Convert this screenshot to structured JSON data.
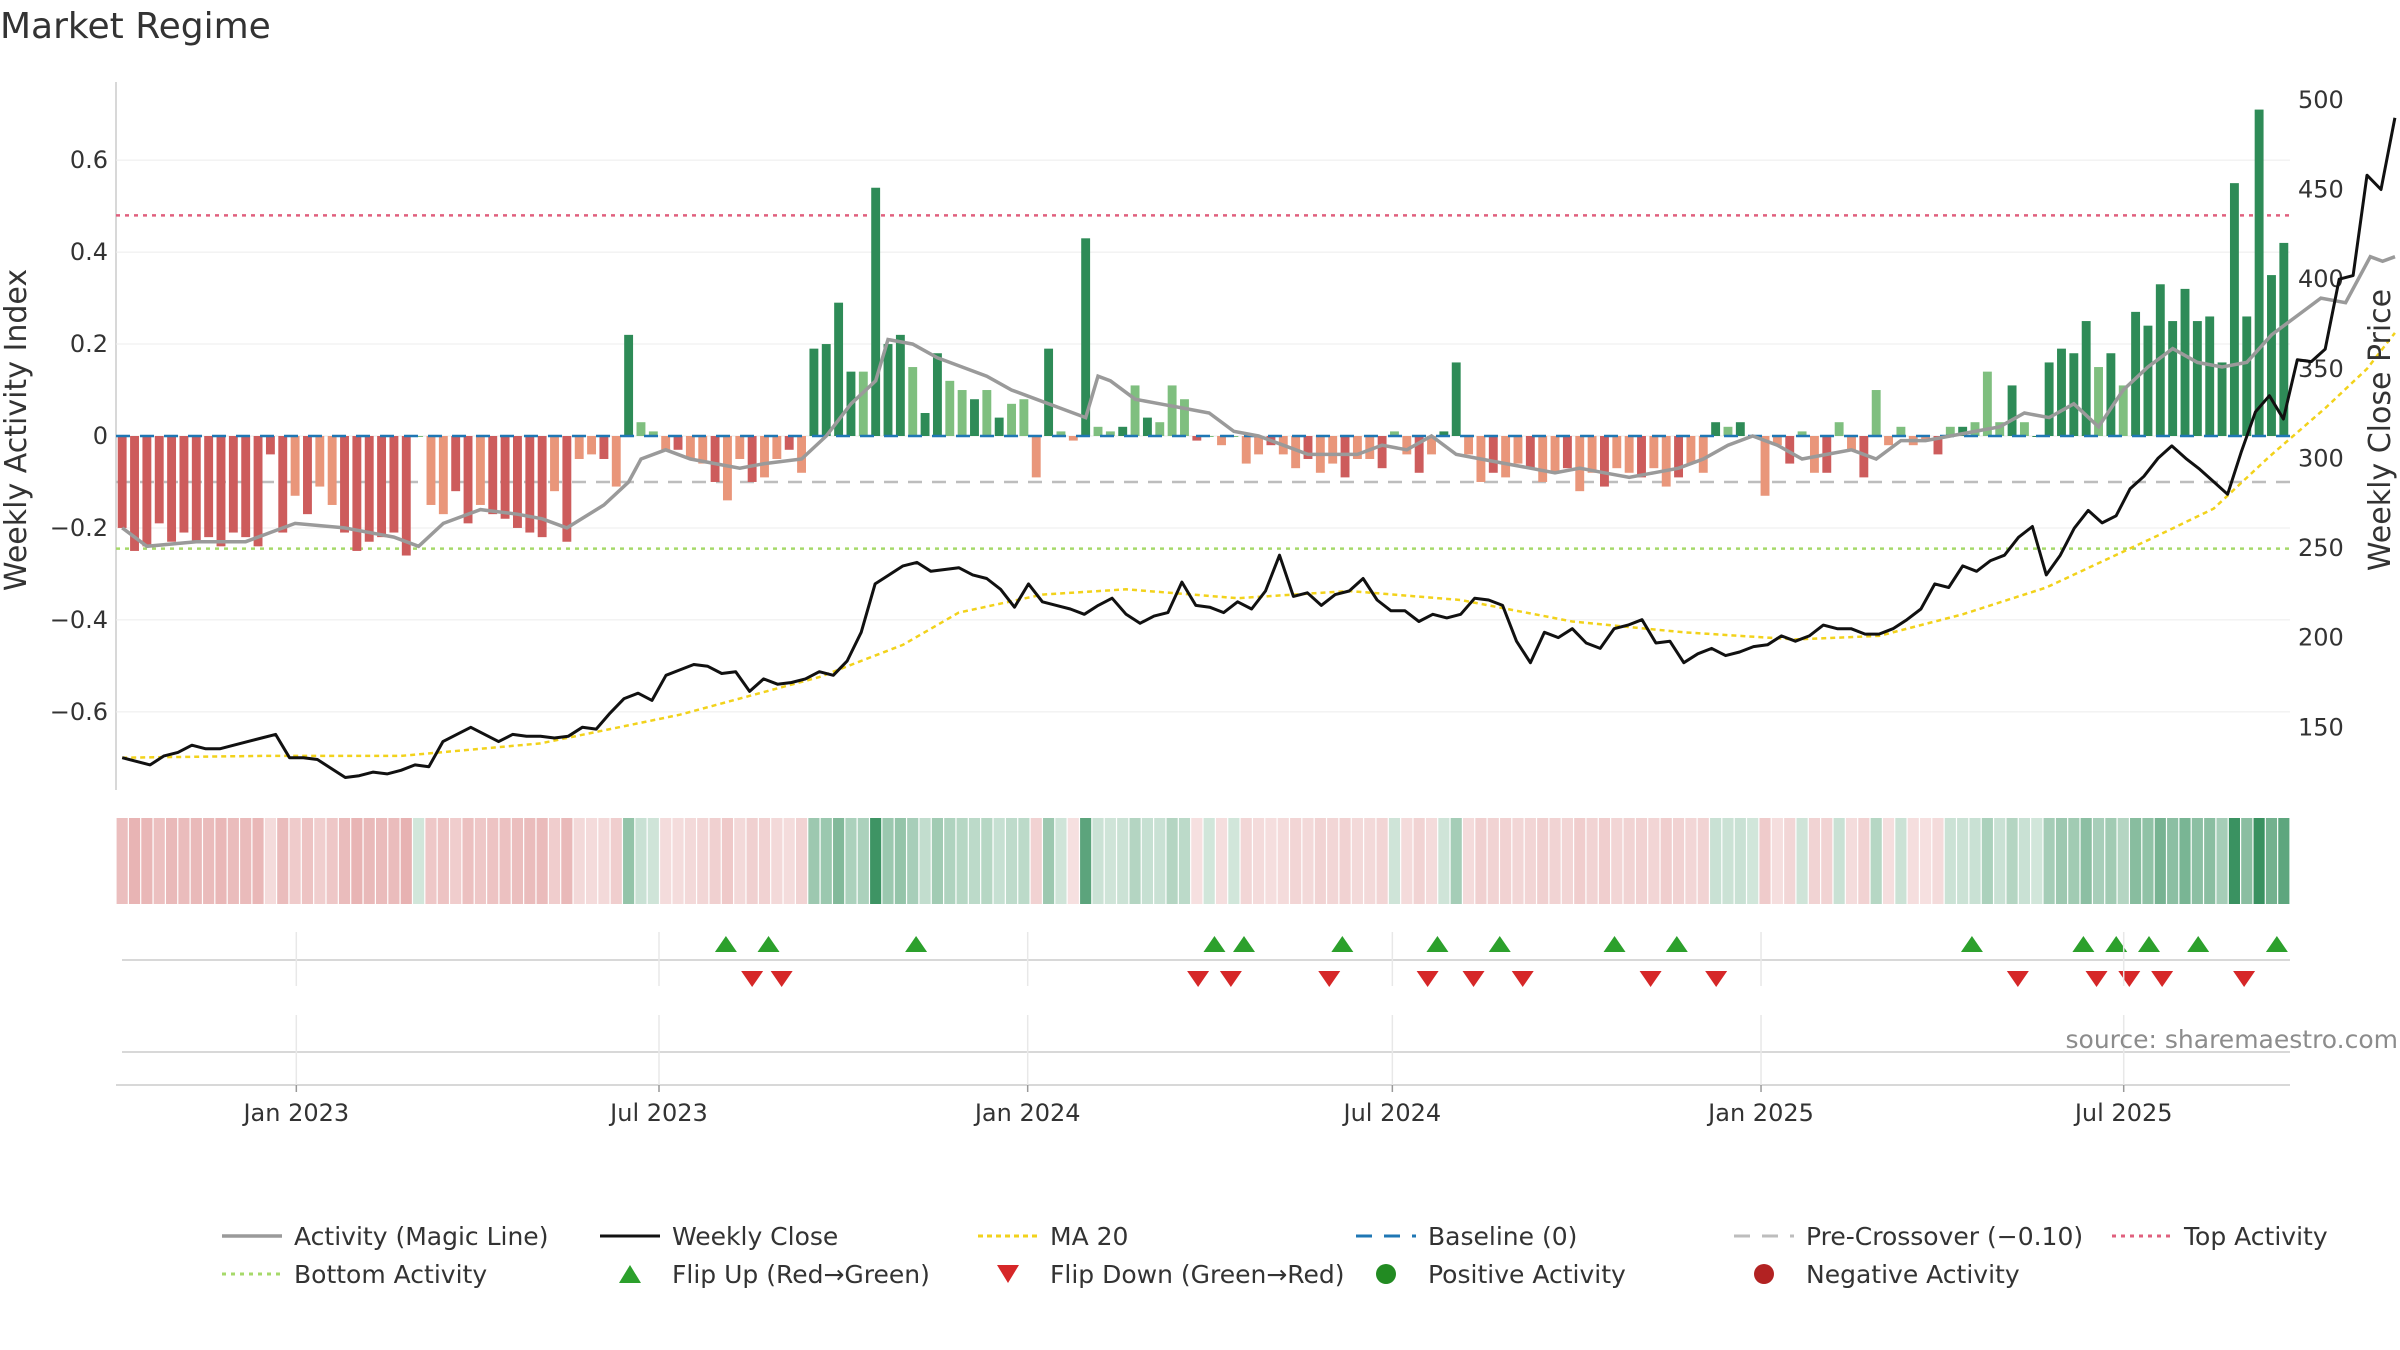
{
  "chart_data": {
    "type": "bar",
    "title": "Market Regime",
    "ylabel_left": "Weekly Activity Index",
    "ylabel_right": "Weekly Close Price",
    "ylim_left": [
      -0.77,
      0.77
    ],
    "ylim_right": [
      115,
      510
    ],
    "left_ticks": [
      {
        "v": 0.6,
        "t": "0.6"
      },
      {
        "v": 0.4,
        "t": "0.4"
      },
      {
        "v": 0.2,
        "t": "0.2"
      },
      {
        "v": 0,
        "t": "0"
      },
      {
        "v": -0.2,
        "t": "−0.2"
      },
      {
        "v": -0.4,
        "t": "−0.4"
      },
      {
        "v": -0.6,
        "t": "−0.6"
      }
    ],
    "right_ticks": [
      {
        "v": 500,
        "t": "500"
      },
      {
        "v": 450,
        "t": "450"
      },
      {
        "v": 400,
        "t": "400"
      },
      {
        "v": 350,
        "t": "350"
      },
      {
        "v": 300,
        "t": "300"
      },
      {
        "v": 250,
        "t": "250"
      },
      {
        "v": 200,
        "t": "200"
      },
      {
        "v": 150,
        "t": "150"
      }
    ],
    "x_start": "2022-10-03",
    "x_end": "2025-09-22",
    "x_ticks": [
      {
        "date": "2023-01-01",
        "label": "Jan 2023"
      },
      {
        "date": "2023-07-01",
        "label": "Jul 2023"
      },
      {
        "date": "2024-01-01",
        "label": "Jan 2024"
      },
      {
        "date": "2024-07-01",
        "label": "Jul 2024"
      },
      {
        "date": "2025-01-01",
        "label": "Jan 2025"
      },
      {
        "date": "2025-07-01",
        "label": "Jul 2025"
      }
    ],
    "activity": [
      -0.2,
      -0.25,
      -0.24,
      -0.19,
      -0.23,
      -0.21,
      -0.23,
      -0.22,
      -0.24,
      -0.21,
      -0.22,
      -0.24,
      -0.04,
      -0.21,
      -0.13,
      -0.17,
      -0.11,
      -0.15,
      -0.21,
      -0.25,
      -0.23,
      -0.22,
      -0.21,
      -0.26,
      0.0,
      -0.15,
      -0.17,
      -0.12,
      -0.19,
      -0.15,
      -0.17,
      -0.18,
      -0.2,
      -0.21,
      -0.22,
      -0.12,
      -0.23,
      -0.05,
      -0.04,
      -0.05,
      -0.11,
      0.22,
      0.03,
      0.01,
      -0.03,
      -0.03,
      -0.05,
      -0.06,
      -0.1,
      -0.14,
      -0.05,
      -0.1,
      -0.09,
      -0.05,
      -0.03,
      -0.08,
      0.19,
      0.2,
      0.29,
      0.14,
      0.14,
      0.54,
      0.2,
      0.22,
      0.15,
      0.05,
      0.18,
      0.12,
      0.1,
      0.08,
      0.1,
      0.04,
      0.07,
      0.08,
      -0.09,
      0.19,
      0.01,
      -0.01,
      0.43,
      0.02,
      0.01,
      0.02,
      0.11,
      0.04,
      0.03,
      0.11,
      0.08,
      -0.01,
      0.0,
      -0.02,
      0.0,
      -0.06,
      -0.04,
      -0.02,
      -0.04,
      -0.07,
      -0.05,
      -0.08,
      -0.06,
      -0.09,
      -0.05,
      -0.05,
      -0.07,
      0.01,
      -0.04,
      -0.08,
      -0.04,
      0.01,
      0.16,
      -0.04,
      -0.1,
      -0.08,
      -0.09,
      -0.06,
      -0.07,
      -0.1,
      -0.08,
      -0.07,
      -0.12,
      -0.08,
      -0.11,
      -0.07,
      -0.08,
      -0.09,
      -0.07,
      -0.11,
      -0.09,
      -0.06,
      -0.08,
      0.03,
      0.02,
      0.03,
      0.0,
      -0.13,
      -0.02,
      -0.06,
      0.01,
      -0.08,
      -0.08,
      0.03,
      -0.03,
      -0.09,
      0.1,
      -0.02,
      0.02,
      -0.02,
      -0.01,
      -0.04,
      0.02,
      0.02,
      0.03,
      0.14,
      0.03,
      0.11,
      0.03,
      0.0,
      0.16,
      0.19,
      0.18,
      0.25,
      0.15,
      0.18,
      0.11,
      0.27,
      0.24,
      0.33,
      0.25,
      0.32,
      0.25,
      0.26,
      0.16,
      0.55,
      0.26,
      0.71,
      0.35,
      0.42
    ],
    "magic_line": [
      [
        0,
        -0.2
      ],
      [
        2,
        -0.24
      ],
      [
        6,
        -0.23
      ],
      [
        10,
        -0.23
      ],
      [
        12,
        -0.21
      ],
      [
        14,
        -0.19
      ],
      [
        18,
        -0.2
      ],
      [
        22,
        -0.22
      ],
      [
        24,
        -0.24
      ],
      [
        26,
        -0.19
      ],
      [
        29,
        -0.16
      ],
      [
        32,
        -0.17
      ],
      [
        34,
        -0.18
      ],
      [
        36,
        -0.2
      ],
      [
        39,
        -0.15
      ],
      [
        41,
        -0.1
      ],
      [
        42,
        -0.05
      ],
      [
        44,
        -0.03
      ],
      [
        46,
        -0.05
      ],
      [
        48,
        -0.06
      ],
      [
        50,
        -0.07
      ],
      [
        52,
        -0.06
      ],
      [
        55,
        -0.05
      ],
      [
        57,
        0.0
      ],
      [
        59,
        0.07
      ],
      [
        61,
        0.12
      ],
      [
        62,
        0.21
      ],
      [
        64,
        0.2
      ],
      [
        66,
        0.17
      ],
      [
        68,
        0.15
      ],
      [
        70,
        0.13
      ],
      [
        72,
        0.1
      ],
      [
        74,
        0.08
      ],
      [
        76,
        0.06
      ],
      [
        78,
        0.04
      ],
      [
        79,
        0.13
      ],
      [
        80,
        0.12
      ],
      [
        82,
        0.08
      ],
      [
        84,
        0.07
      ],
      [
        86,
        0.06
      ],
      [
        88,
        0.05
      ],
      [
        90,
        0.01
      ],
      [
        92,
        0.0
      ],
      [
        94,
        -0.02
      ],
      [
        96,
        -0.04
      ],
      [
        98,
        -0.04
      ],
      [
        100,
        -0.04
      ],
      [
        102,
        -0.02
      ],
      [
        104,
        -0.03
      ],
      [
        106,
        0.0
      ],
      [
        108,
        -0.04
      ],
      [
        110,
        -0.05
      ],
      [
        112,
        -0.06
      ],
      [
        114,
        -0.07
      ],
      [
        116,
        -0.08
      ],
      [
        118,
        -0.07
      ],
      [
        120,
        -0.08
      ],
      [
        122,
        -0.09
      ],
      [
        124,
        -0.08
      ],
      [
        126,
        -0.07
      ],
      [
        128,
        -0.05
      ],
      [
        130,
        -0.02
      ],
      [
        132,
        0.0
      ],
      [
        134,
        -0.02
      ],
      [
        136,
        -0.05
      ],
      [
        138,
        -0.04
      ],
      [
        140,
        -0.03
      ],
      [
        142,
        -0.05
      ],
      [
        144,
        -0.01
      ],
      [
        146,
        -0.01
      ],
      [
        148,
        0.0
      ],
      [
        150,
        0.01
      ],
      [
        152,
        0.02
      ],
      [
        154,
        0.05
      ],
      [
        156,
        0.04
      ],
      [
        158,
        0.07
      ],
      [
        160,
        0.02
      ],
      [
        162,
        0.1
      ],
      [
        164,
        0.15
      ],
      [
        166,
        0.19
      ],
      [
        168,
        0.16
      ],
      [
        170,
        0.15
      ],
      [
        172,
        0.16
      ],
      [
        174,
        0.22
      ],
      [
        176,
        0.26
      ],
      [
        178,
        0.3
      ],
      [
        180,
        0.29
      ],
      [
        182,
        0.39
      ],
      [
        183,
        0.38
      ],
      [
        184,
        0.39
      ]
    ],
    "close": [
      [
        0,
        133
      ],
      [
        1,
        131
      ],
      [
        2,
        129
      ],
      [
        3,
        134
      ],
      [
        4,
        136
      ],
      [
        5,
        140
      ],
      [
        6,
        138
      ],
      [
        7,
        138
      ],
      [
        8,
        140
      ],
      [
        9,
        142
      ],
      [
        10,
        144
      ],
      [
        11,
        146
      ],
      [
        12,
        133
      ],
      [
        13,
        133
      ],
      [
        14,
        132
      ],
      [
        15,
        127
      ],
      [
        16,
        122
      ],
      [
        17,
        123
      ],
      [
        18,
        125
      ],
      [
        19,
        124
      ],
      [
        20,
        126
      ],
      [
        21,
        129
      ],
      [
        22,
        128
      ],
      [
        23,
        142
      ],
      [
        24,
        146
      ],
      [
        25,
        150
      ],
      [
        26,
        146
      ],
      [
        27,
        142
      ],
      [
        28,
        146
      ],
      [
        29,
        145
      ],
      [
        30,
        145
      ],
      [
        31,
        144
      ],
      [
        32,
        145
      ],
      [
        33,
        150
      ],
      [
        34,
        149
      ],
      [
        35,
        158
      ],
      [
        36,
        166
      ],
      [
        37,
        169
      ],
      [
        38,
        165
      ],
      [
        39,
        179
      ],
      [
        40,
        182
      ],
      [
        41,
        185
      ],
      [
        42,
        184
      ],
      [
        43,
        180
      ],
      [
        44,
        181
      ],
      [
        45,
        170
      ],
      [
        46,
        177
      ],
      [
        47,
        174
      ],
      [
        48,
        175
      ],
      [
        49,
        177
      ],
      [
        50,
        181
      ],
      [
        51,
        179
      ],
      [
        52,
        187
      ],
      [
        53,
        203
      ],
      [
        54,
        230
      ],
      [
        55,
        235
      ],
      [
        56,
        240
      ],
      [
        57,
        242
      ],
      [
        58,
        237
      ],
      [
        59,
        238
      ],
      [
        60,
        239
      ],
      [
        61,
        235
      ],
      [
        62,
        233
      ],
      [
        63,
        227
      ],
      [
        64,
        217
      ],
      [
        65,
        230
      ],
      [
        66,
        220
      ],
      [
        67,
        218
      ],
      [
        68,
        216
      ],
      [
        69,
        213
      ],
      [
        70,
        218
      ],
      [
        71,
        222
      ],
      [
        72,
        213
      ],
      [
        73,
        208
      ],
      [
        74,
        212
      ],
      [
        75,
        214
      ],
      [
        76,
        231
      ],
      [
        77,
        218
      ],
      [
        78,
        217
      ],
      [
        79,
        214
      ],
      [
        80,
        220
      ],
      [
        81,
        216
      ],
      [
        82,
        226
      ],
      [
        83,
        246
      ],
      [
        84,
        223
      ],
      [
        85,
        225
      ],
      [
        86,
        218
      ],
      [
        87,
        224
      ],
      [
        88,
        226
      ],
      [
        89,
        233
      ],
      [
        90,
        221
      ],
      [
        91,
        215
      ],
      [
        92,
        215
      ],
      [
        93,
        209
      ],
      [
        94,
        213
      ],
      [
        95,
        211
      ],
      [
        96,
        213
      ],
      [
        97,
        222
      ],
      [
        98,
        221
      ],
      [
        99,
        218
      ],
      [
        100,
        198
      ],
      [
        101,
        186
      ],
      [
        102,
        203
      ],
      [
        103,
        200
      ],
      [
        104,
        205
      ],
      [
        105,
        197
      ],
      [
        106,
        194
      ],
      [
        107,
        205
      ],
      [
        108,
        207
      ],
      [
        109,
        210
      ],
      [
        110,
        197
      ],
      [
        111,
        198
      ],
      [
        112,
        186
      ],
      [
        113,
        191
      ],
      [
        114,
        194
      ],
      [
        115,
        190
      ],
      [
        116,
        192
      ],
      [
        117,
        195
      ],
      [
        118,
        196
      ],
      [
        119,
        201
      ],
      [
        120,
        198
      ],
      [
        121,
        201
      ],
      [
        122,
        207
      ],
      [
        123,
        205
      ],
      [
        124,
        205
      ],
      [
        125,
        202
      ],
      [
        126,
        202
      ],
      [
        127,
        205
      ],
      [
        128,
        210
      ],
      [
        129,
        216
      ],
      [
        130,
        230
      ],
      [
        131,
        228
      ],
      [
        132,
        240
      ],
      [
        133,
        237
      ],
      [
        134,
        243
      ],
      [
        135,
        246
      ],
      [
        136,
        256
      ],
      [
        137,
        262
      ],
      [
        138,
        235
      ],
      [
        139,
        246
      ],
      [
        140,
        261
      ],
      [
        141,
        271
      ],
      [
        142,
        264
      ],
      [
        143,
        268
      ],
      [
        144,
        283
      ],
      [
        145,
        290
      ],
      [
        146,
        300
      ],
      [
        147,
        307
      ],
      [
        148,
        300
      ],
      [
        149,
        294
      ],
      [
        150,
        287
      ],
      [
        151,
        280
      ],
      [
        152,
        304
      ],
      [
        153,
        326
      ],
      [
        154,
        335
      ],
      [
        155,
        322
      ],
      [
        156,
        355
      ],
      [
        157,
        354
      ],
      [
        158,
        361
      ],
      [
        159,
        400
      ],
      [
        160,
        402
      ],
      [
        161,
        458
      ],
      [
        162,
        450
      ],
      [
        163,
        490
      ]
    ],
    "close_x_scale": 1.1288,
    "ma20": [
      [
        0,
        133
      ],
      [
        10,
        134
      ],
      [
        20,
        134
      ],
      [
        30,
        141
      ],
      [
        40,
        157
      ],
      [
        50,
        178
      ],
      [
        56,
        196
      ],
      [
        60,
        214
      ],
      [
        66,
        224
      ],
      [
        72,
        227
      ],
      [
        80,
        222
      ],
      [
        88,
        226
      ],
      [
        96,
        221
      ],
      [
        104,
        209
      ],
      [
        112,
        203
      ],
      [
        120,
        199
      ],
      [
        126,
        201
      ],
      [
        132,
        213
      ],
      [
        138,
        228
      ],
      [
        146,
        257
      ],
      [
        150,
        272
      ],
      [
        154,
        301
      ],
      [
        158,
        328
      ],
      [
        161,
        350
      ],
      [
        163,
        370
      ]
    ],
    "top_activity": 0.48,
    "bottom_activity": -0.245,
    "pre_crossover": -0.1,
    "baseline": 0,
    "flip_up_x": [
      18.6,
      19.9,
      24.4,
      33.5,
      34.4,
      37.4,
      40.3,
      42.2,
      45.7,
      47.6,
      56.6,
      60.0,
      61.0,
      62.0,
      63.5,
      65.9
    ],
    "flip_down_x": [
      19.4,
      20.3,
      33.0,
      34.0,
      37.0,
      40.0,
      41.4,
      42.9,
      46.8,
      48.8,
      58.0,
      60.4,
      61.4,
      62.4,
      64.9
    ],
    "legend": [
      [
        "Activity (Magic Line)",
        "Weekly Close",
        "MA 20",
        "Baseline (0)",
        "Pre-Crossover (−0.10)",
        "Top Activity"
      ],
      [
        "Bottom Activity",
        "Flip Up (Red→Green)",
        "Flip Down (Green→Red)",
        "Positive Activity",
        "Negative Activity"
      ]
    ],
    "colors": {
      "pos_strong": "#2e8b57",
      "pos_light": "#7fbf7f",
      "neg_strong": "#cd5c5c",
      "neg_light": "#e9967a",
      "magic": "#9a9a9a",
      "close": "#111111",
      "ma20": "#f2d21b",
      "baseline": "#1f77b4",
      "pre": "#bdbdbd",
      "top": "#e0607e",
      "bottom": "#a6d96a",
      "flip_up": "#2ca02c",
      "flip_down": "#d62728",
      "positive_dot": "#228b22",
      "negative_dot": "#b22222"
    }
  },
  "source": "source: sharemaestro.com"
}
